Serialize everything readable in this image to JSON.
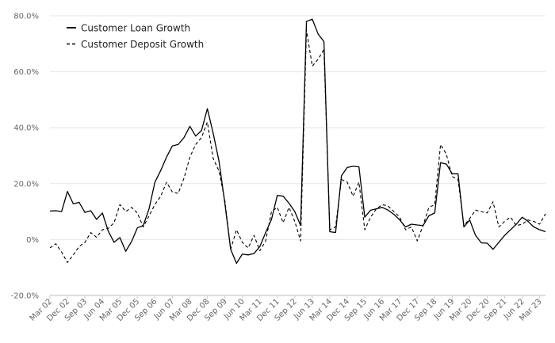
{
  "chart_data": {
    "type": "line",
    "title": "",
    "xlabel": "",
    "ylabel": "",
    "ylim": [
      -20,
      80
    ],
    "y_ticks": [
      -20,
      0,
      20,
      40,
      60,
      80
    ],
    "y_tick_labels": [
      "-20.0%",
      "0%",
      "20.0%",
      "40.0%",
      "60.0%",
      "80.0%"
    ],
    "grid": "horizontal",
    "legend_position": "top-left",
    "x": [
      "Mar 02",
      "Jun 02",
      "Sep 02",
      "Dec 02",
      "Mar 03",
      "Jun 03",
      "Sep 03",
      "Dec 03",
      "Mar 04",
      "Jun 04",
      "Sep 04",
      "Dec 04",
      "Mar 05",
      "Jun 05",
      "Sep 05",
      "Dec 05",
      "Mar 06",
      "Jun 06",
      "Sep 06",
      "Dec 06",
      "Mar 07",
      "Jun 07",
      "Sep 07",
      "Dec 07",
      "Mar 08",
      "Jun 08",
      "Sep 08",
      "Dec 08",
      "Mar 09",
      "Jun 09",
      "Sep 09",
      "Dec 09",
      "Mar 10",
      "Jun 10",
      "Sep 10",
      "Dec 10",
      "Mar 11",
      "Jun 11",
      "Sep 11",
      "Dec 11",
      "Mar 12",
      "Jun 12",
      "Sep 12",
      "Dec 12",
      "Mar 13",
      "Jun 13",
      "Sep 13",
      "Dec 13",
      "Mar 14",
      "Jun 14",
      "Sep 14",
      "Dec 14",
      "Mar 15",
      "Jun 15",
      "Sep 15",
      "Dec 15",
      "Mar 16",
      "Jun 16",
      "Sep 16",
      "Dec 16",
      "Mar 17",
      "Jun 17",
      "Sep 17",
      "Dec 17",
      "Mar 18",
      "Jun 18",
      "Sep 18",
      "Dec 18",
      "Mar 19",
      "Jun 19",
      "Sep 19",
      "Dec 19",
      "Mar 20",
      "Jun 20",
      "Sep 20",
      "Dec 20",
      "Mar 21",
      "Jun 21",
      "Sep 21",
      "Dec 21",
      "Mar 22",
      "Jun 22",
      "Sep 22",
      "Dec 22",
      "Mar 23",
      "Jun 23"
    ],
    "x_tick_labels": [
      "Mar 02",
      "Dec 02",
      "Sep 03",
      "Jun 04",
      "Mar 05",
      "Dec 05",
      "Sep 06",
      "Jun 07",
      "Mar 08",
      "Dec 08",
      "Sep 09",
      "Jun 10",
      "Mar 11",
      "Dec 11",
      "Sep 12",
      "Jun 13",
      "Mar 14",
      "Dec 14",
      "Sep 15",
      "Jun 16",
      "Mar 17",
      "Dec 17",
      "Sep 18",
      "Jun 19",
      "Mar 20",
      "Dec 20",
      "Sep 21",
      "Jun 22",
      "Mar 23"
    ],
    "series": [
      {
        "name": "Customer Loan Growth",
        "style": "solid",
        "color": "#000000",
        "values": [
          10.2,
          10.3,
          10.0,
          17.2,
          12.8,
          13.3,
          9.7,
          10.3,
          7.2,
          9.5,
          3.0,
          -1.0,
          0.7,
          -4.2,
          -0.7,
          4.2,
          5.0,
          11.0,
          20.5,
          24.7,
          29.5,
          33.5,
          34.0,
          36.5,
          40.5,
          37.0,
          39.0,
          46.8,
          38.0,
          28.0,
          13.0,
          -3.5,
          -8.5,
          -5.2,
          -5.5,
          -5.0,
          -2.5,
          2.5,
          7.2,
          15.8,
          15.5,
          13.0,
          10.0,
          5.0,
          78.0,
          78.8,
          73.5,
          70.8,
          2.8,
          2.5,
          22.8,
          25.8,
          26.2,
          26.0,
          8.0,
          10.5,
          11.0,
          11.5,
          10.5,
          9.0,
          7.0,
          4.5,
          5.5,
          5.2,
          5.0,
          8.5,
          9.5,
          27.5,
          27.0,
          23.5,
          23.5,
          4.5,
          7.0,
          1.5,
          -1.2,
          -1.3,
          -3.5,
          -1.0,
          1.5,
          3.5,
          5.5,
          8.0,
          6.5,
          4.5,
          3.5,
          2.8
        ]
      },
      {
        "name": "Customer Deposit Growth",
        "style": "dashed",
        "color": "#000000",
        "values": [
          -3.0,
          -1.5,
          -4.5,
          -8.2,
          -5.5,
          -2.5,
          -1.0,
          2.5,
          0.8,
          3.5,
          4.0,
          6.0,
          12.5,
          10.0,
          11.5,
          9.5,
          4.5,
          8.5,
          12.5,
          15.5,
          20.5,
          17.0,
          16.5,
          22.0,
          29.5,
          34.0,
          36.5,
          42.0,
          29.0,
          24.5,
          14.0,
          -3.5,
          3.5,
          -1.0,
          -3.0,
          1.5,
          -4.0,
          -0.5,
          10.0,
          11.5,
          6.0,
          11.5,
          6.5,
          -0.5,
          75.0,
          62.0,
          64.5,
          68.0,
          3.5,
          4.5,
          21.5,
          20.5,
          15.5,
          20.5,
          3.5,
          8.0,
          11.0,
          12.5,
          12.0,
          10.0,
          8.0,
          3.5,
          4.5,
          -0.5,
          5.0,
          11.5,
          12.5,
          34.0,
          30.5,
          22.5,
          21.5,
          5.0,
          7.5,
          10.5,
          10.0,
          9.5,
          13.5,
          4.5,
          6.5,
          8.0,
          5.0,
          5.5,
          7.0,
          6.5,
          5.5,
          9.2
        ]
      }
    ]
  }
}
